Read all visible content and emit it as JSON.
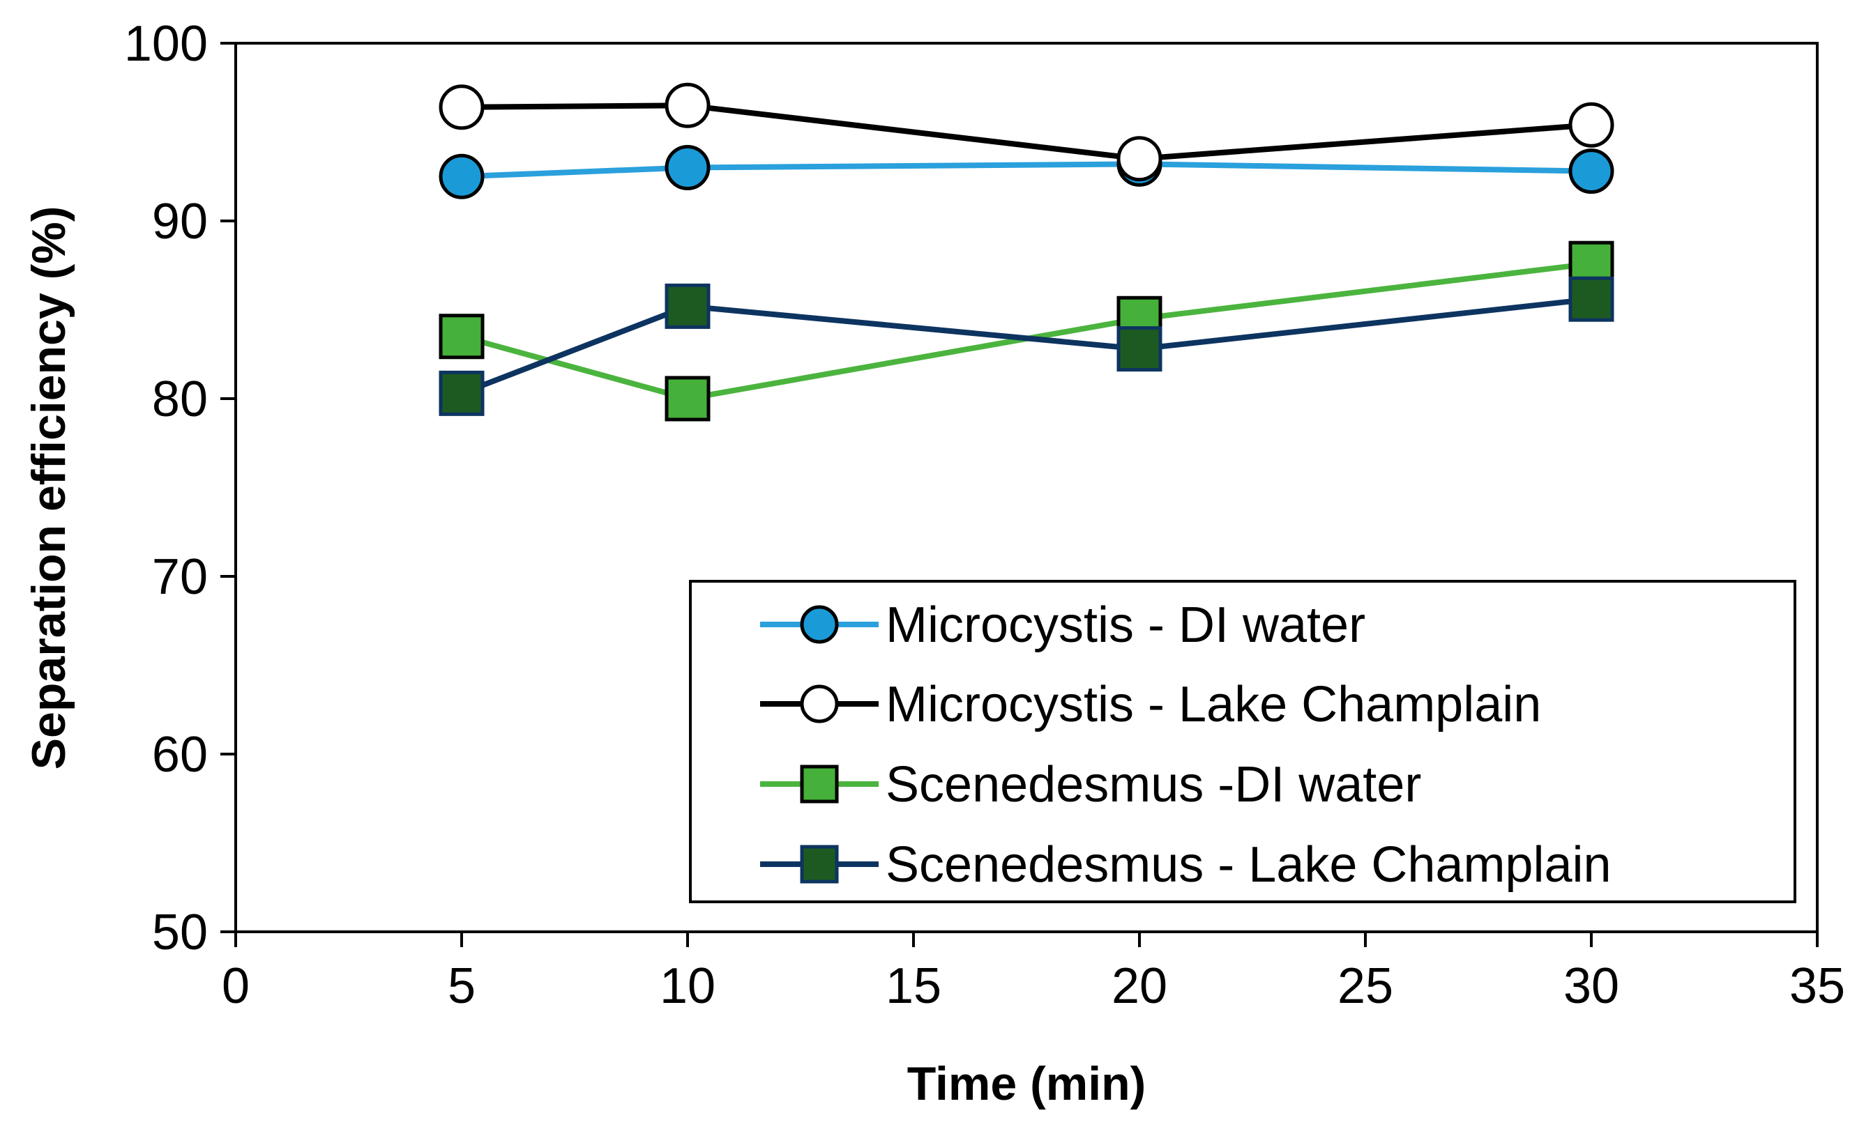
{
  "chart_data": {
    "type": "line",
    "title": "",
    "xlabel": "Time (min)",
    "ylabel": "Separation efficiency (%)",
    "xlim": [
      0,
      35
    ],
    "ylim": [
      50,
      100
    ],
    "xticks": [
      0,
      5,
      10,
      15,
      20,
      25,
      30,
      35
    ],
    "yticks": [
      50,
      60,
      70,
      80,
      90,
      100
    ],
    "grid": false,
    "legend_position": "bottom-right",
    "x": [
      5,
      10,
      20,
      30
    ],
    "series": [
      {
        "name": "Microcystis - DI water",
        "values": [
          92.5,
          93.0,
          93.2,
          92.8
        ],
        "marker": "circle",
        "line_color": "#2aa0dc",
        "marker_fill": "#1b9ad8",
        "marker_edge": "#000000"
      },
      {
        "name": "Microcystis - Lake Champlain",
        "values": [
          96.4,
          96.5,
          93.5,
          95.4
        ],
        "marker": "circle",
        "line_color": "#000000",
        "marker_fill": "#ffffff",
        "marker_edge": "#000000"
      },
      {
        "name": "Scenedesmus -DI water",
        "values": [
          83.5,
          80.0,
          84.5,
          87.6
        ],
        "marker": "square",
        "line_color": "#4bb43e",
        "marker_fill": "#45b03a",
        "marker_edge": "#000000"
      },
      {
        "name": "Scenedesmus - Lake Champlain",
        "values": [
          80.3,
          85.2,
          82.8,
          85.6
        ],
        "marker": "square",
        "line_color": "#0d3460",
        "marker_fill": "#1d5a22",
        "marker_edge": "#0d3460"
      }
    ]
  }
}
